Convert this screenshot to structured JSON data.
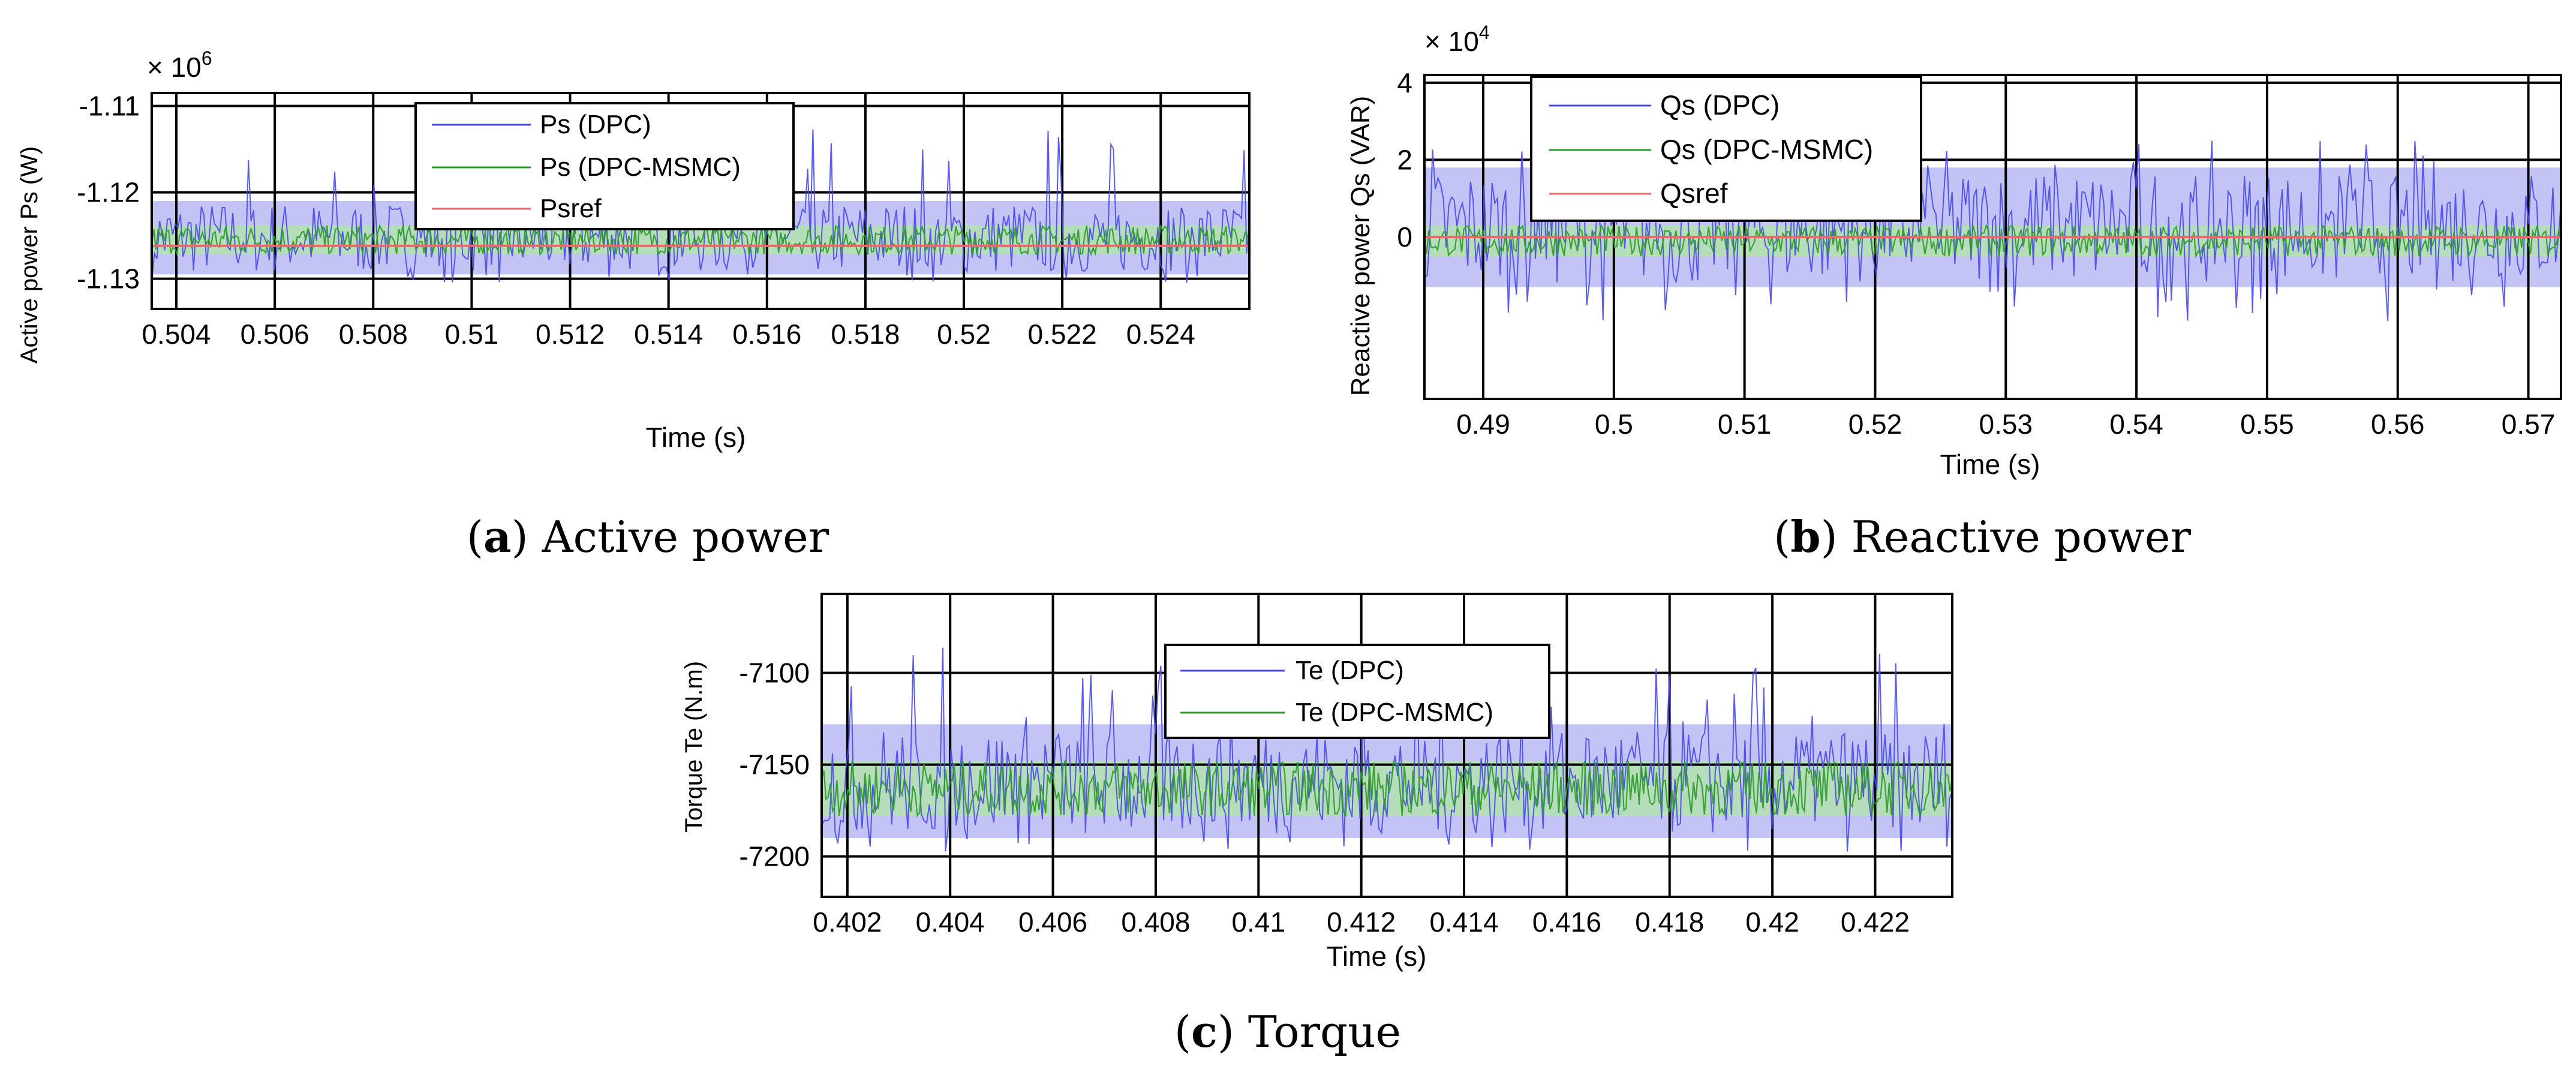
{
  "figure": {
    "captions": [
      {
        "label": "a",
        "text": "Active power"
      },
      {
        "label": "b",
        "text": "Reactive power"
      },
      {
        "label": "c",
        "text": "Torque"
      }
    ]
  },
  "colors": {
    "dpc": "#4a4ae6",
    "dpc_band": "#b8b8f5",
    "msmc": "#2e9a2e",
    "msmc_band": "#b4e0b4",
    "ref": "#e86a6a",
    "grid": "#000000",
    "axis": "#000000"
  },
  "chart_data": [
    {
      "id": "active-power",
      "type": "line",
      "title": "",
      "xlabel": "Time (s)",
      "ylabel": "Active power Ps (W)",
      "exponent_label": "× 10",
      "exponent_power": "6",
      "xlim": [
        0.5035,
        0.5258
      ],
      "ylim": [
        -1.1335,
        -1.1085
      ],
      "xticks": [
        0.504,
        0.506,
        0.508,
        0.51,
        0.512,
        0.514,
        0.516,
        0.518,
        0.52,
        0.522,
        0.524
      ],
      "xtick_labels": [
        "0.504",
        "0.506",
        "0.508",
        "0.51",
        "0.512",
        "0.514",
        "0.516",
        "0.518",
        "0.52",
        "0.522",
        "0.524"
      ],
      "yticks": [
        -1.13,
        -1.12,
        -1.11
      ],
      "ytick_labels": [
        "-1.13",
        "-1.12",
        "-1.11"
      ],
      "grid": true,
      "legend_position": "top-center",
      "series": [
        {
          "name": "Ps (DPC)",
          "kind": "dpc",
          "center": -1.1255,
          "band_low": -1.1295,
          "band_high": -1.121,
          "spike_high": -1.1125,
          "spike_low": -1.1305
        },
        {
          "name": "Ps (DPC-MSMC)",
          "kind": "msmc",
          "center": -1.1255,
          "band_low": -1.1272,
          "band_high": -1.1238
        },
        {
          "name": "Psref",
          "kind": "ref",
          "value": -1.1262
        }
      ]
    },
    {
      "id": "reactive-power",
      "type": "line",
      "title": "",
      "xlabel": "Time (s)",
      "ylabel": "Reactive power Qs (VAR)",
      "exponent_label": "× 10",
      "exponent_power": "4",
      "xlim": [
        0.4855,
        0.5725
      ],
      "ylim": [
        -4.2,
        4.2
      ],
      "xticks": [
        0.49,
        0.5,
        0.51,
        0.52,
        0.53,
        0.54,
        0.55,
        0.56,
        0.57
      ],
      "xtick_labels": [
        "0.49",
        "0.5",
        "0.51",
        "0.52",
        "0.53",
        "0.54",
        "0.55",
        "0.56",
        "0.57"
      ],
      "yticks": [
        0,
        2,
        4
      ],
      "ytick_labels": [
        "0",
        "2",
        "4"
      ],
      "grid": true,
      "legend_position": "top-left",
      "series": [
        {
          "name": "Qs (DPC)",
          "kind": "dpc",
          "center": 0.3,
          "band_low": -1.3,
          "band_high": 1.8,
          "spike_high": 2.5,
          "spike_low": -2.2
        },
        {
          "name": "Qs (DPC-MSMC)",
          "kind": "msmc",
          "center": 0.0,
          "band_low": -0.5,
          "band_high": 0.3
        },
        {
          "name": "Qsref",
          "kind": "ref",
          "value": 0.0
        }
      ]
    },
    {
      "id": "torque",
      "type": "line",
      "title": "",
      "xlabel": "Time (s)",
      "ylabel": "Torque Te (N.m)",
      "exponent_label": "",
      "exponent_power": "",
      "xlim": [
        0.4015,
        0.4235
      ],
      "ylim": [
        -7222,
        -7057
      ],
      "xticks": [
        0.402,
        0.404,
        0.406,
        0.408,
        0.41,
        0.412,
        0.414,
        0.416,
        0.418,
        0.42,
        0.422
      ],
      "xtick_labels": [
        "0.402",
        "0.404",
        "0.406",
        "0.408",
        "0.41",
        "0.412",
        "0.414",
        "0.416",
        "0.418",
        "0.42",
        "0.422"
      ],
      "yticks": [
        -7200,
        -7150,
        -7100
      ],
      "ytick_labels": [
        "-7200",
        "-7150",
        "-7100"
      ],
      "grid": true,
      "legend_position": "top-center",
      "series": [
        {
          "name": "Te (DPC)",
          "kind": "dpc",
          "center": -7158,
          "band_low": -7190,
          "band_high": -7128,
          "spike_high": -7085,
          "spike_low": -7198
        },
        {
          "name": "Te (DPC-MSMC)",
          "kind": "msmc",
          "center": -7163,
          "band_low": -7178,
          "band_high": -7148
        }
      ]
    }
  ]
}
